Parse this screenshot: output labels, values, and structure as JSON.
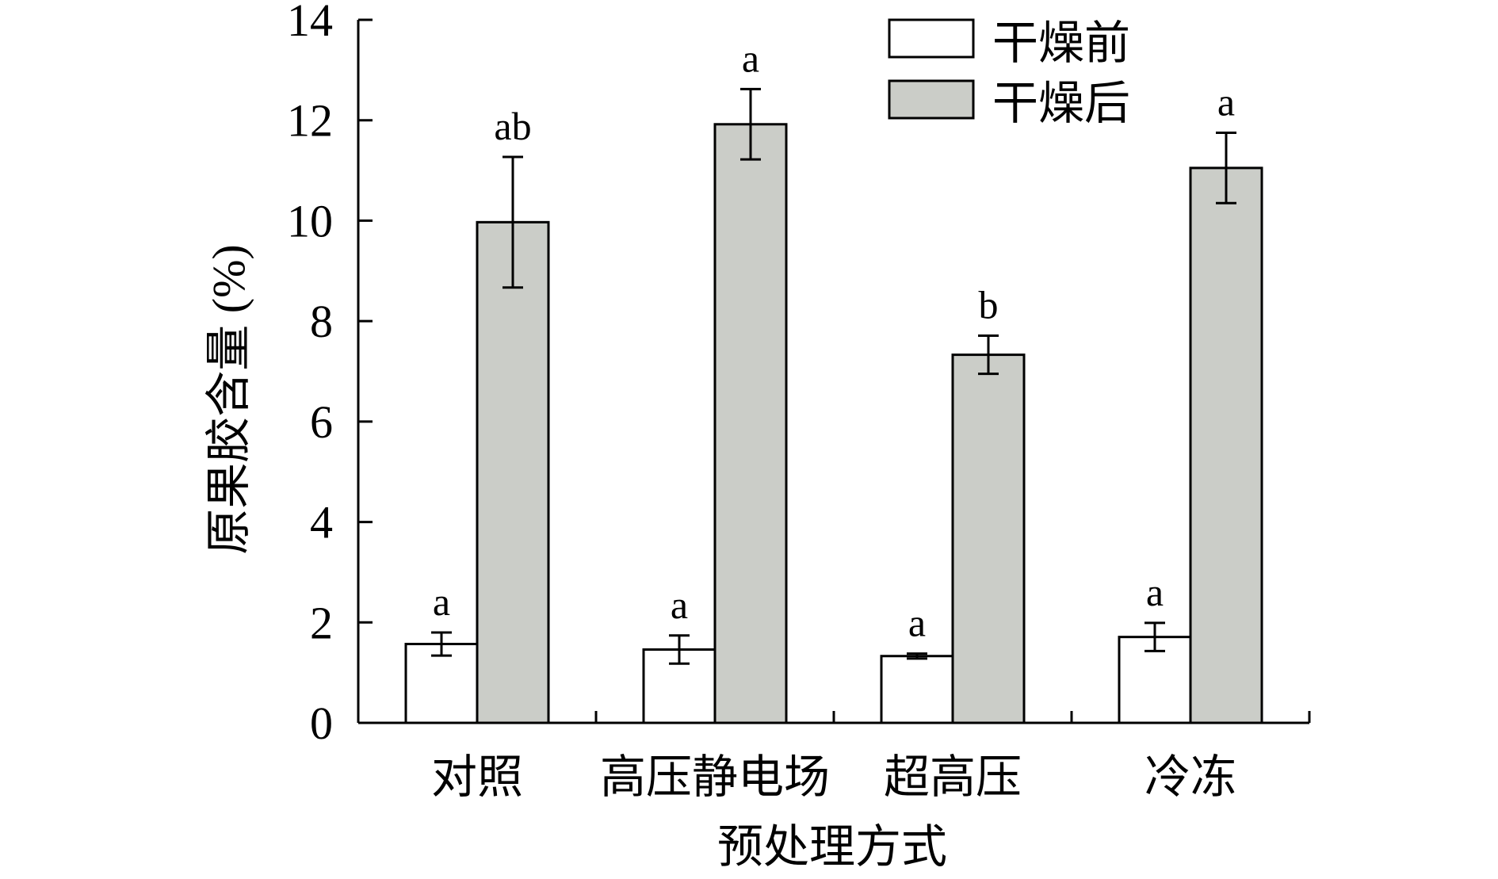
{
  "chart_data": {
    "type": "bar",
    "xlabel": "预处理方式",
    "ylabel": "原果胶含量 (%)",
    "ylim": [
      0,
      14
    ],
    "yticks": [
      0,
      2,
      4,
      6,
      8,
      10,
      12,
      14
    ],
    "categories": [
      "对照",
      "高压静电场",
      "超高压",
      "冷冻"
    ],
    "series": [
      {
        "name": "干燥前",
        "color": "#ffffff",
        "values": [
          1.57,
          1.46,
          1.33,
          1.71
        ],
        "errors": [
          0.23,
          0.28,
          0.05,
          0.28
        ],
        "labels": [
          "a",
          "a",
          "a",
          "a"
        ]
      },
      {
        "name": "干燥后",
        "color": "#cbcdc8",
        "values": [
          9.97,
          11.92,
          7.33,
          11.05
        ],
        "errors": [
          1.3,
          0.7,
          0.38,
          0.7
        ],
        "labels": [
          "ab",
          "a",
          "b",
          "a"
        ]
      }
    ],
    "legend_position": "top-right",
    "grid": false
  }
}
